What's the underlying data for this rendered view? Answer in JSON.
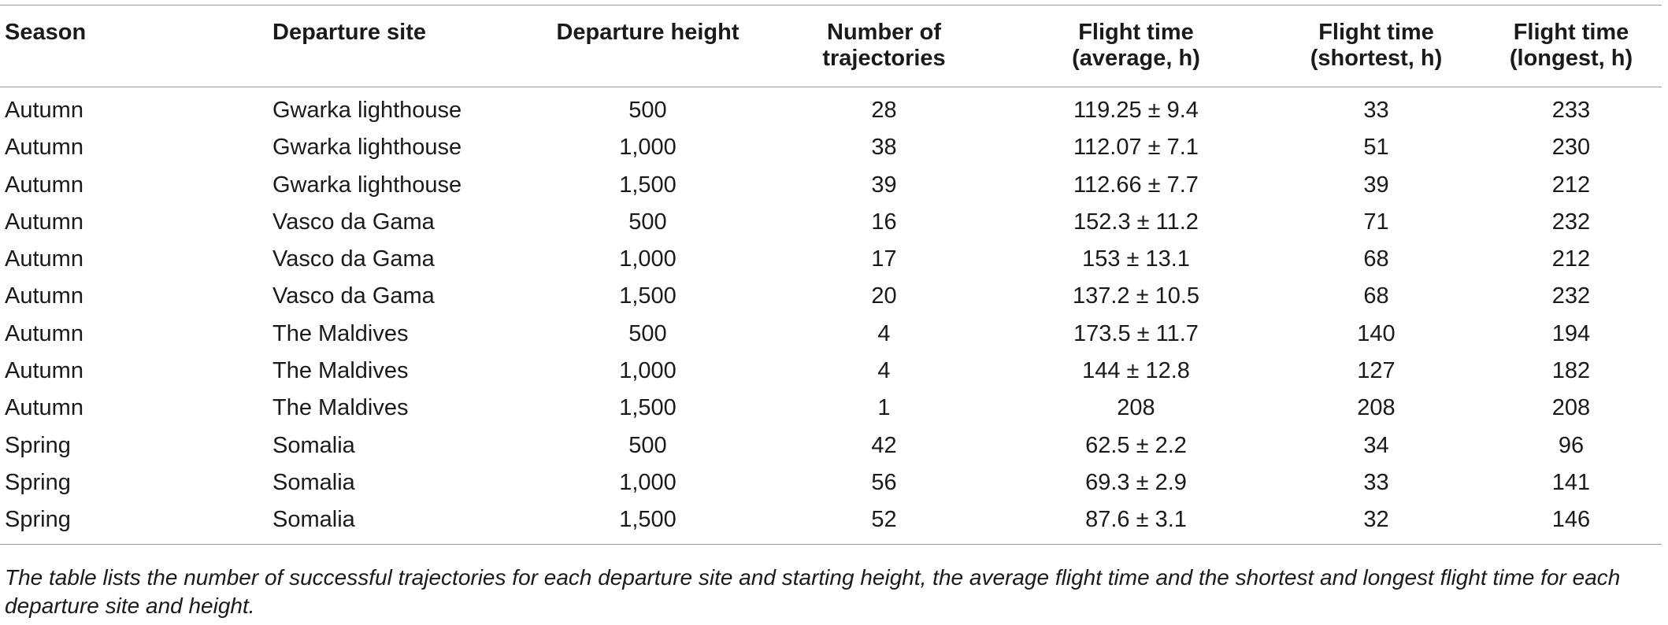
{
  "table": {
    "headers": [
      [
        "Season"
      ],
      [
        "Departure site"
      ],
      [
        "Departure height"
      ],
      [
        "Number of",
        "trajectories"
      ],
      [
        "Flight time",
        "(average, h)"
      ],
      [
        "Flight time",
        "(shortest, h)"
      ],
      [
        "Flight time",
        "(longest, h)"
      ]
    ],
    "rows": [
      [
        "Autumn",
        "Gwarka lighthouse",
        "500",
        "28",
        "119.25 ± 9.4",
        "33",
        "233"
      ],
      [
        "Autumn",
        "Gwarka lighthouse",
        "1,000",
        "38",
        "112.07 ± 7.1",
        "51",
        "230"
      ],
      [
        "Autumn",
        "Gwarka lighthouse",
        "1,500",
        "39",
        "112.66 ± 7.7",
        "39",
        "212"
      ],
      [
        "Autumn",
        "Vasco da Gama",
        "500",
        "16",
        "152.3 ± 11.2",
        "71",
        "232"
      ],
      [
        "Autumn",
        "Vasco da Gama",
        "1,000",
        "17",
        "153 ± 13.1",
        "68",
        "212"
      ],
      [
        "Autumn",
        "Vasco da Gama",
        "1,500",
        "20",
        "137.2 ± 10.5",
        "68",
        "232"
      ],
      [
        "Autumn",
        "The Maldives",
        "500",
        "4",
        "173.5 ± 11.7",
        "140",
        "194"
      ],
      [
        "Autumn",
        "The Maldives",
        "1,000",
        "4",
        "144 ± 12.8",
        "127",
        "182"
      ],
      [
        "Autumn",
        "The Maldives",
        "1,500",
        "1",
        "208",
        "208",
        "208"
      ],
      [
        "Spring",
        "Somalia",
        "500",
        "42",
        "62.5 ± 2.2",
        "34",
        "96"
      ],
      [
        "Spring",
        "Somalia",
        "1,000",
        "56",
        "69.3 ± 2.9",
        "33",
        "141"
      ],
      [
        "Spring",
        "Somalia",
        "1,500",
        "52",
        "87.6 ± 3.1",
        "32",
        "146"
      ]
    ]
  },
  "caption": "The table lists the number of successful trajectories for each departure site and starting height, the average flight time and the shortest and longest flight time for each departure site and height."
}
